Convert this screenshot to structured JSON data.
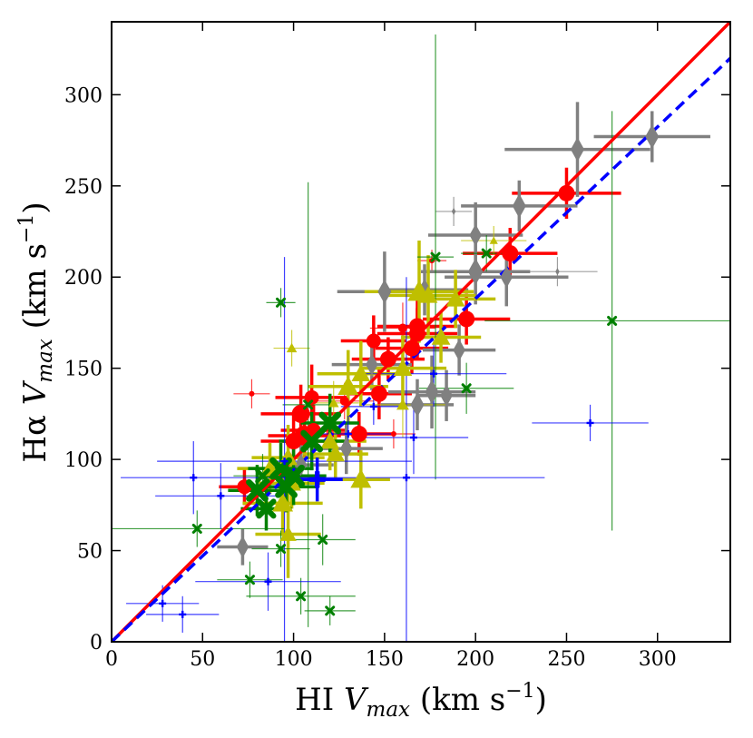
{
  "chart_data": {
    "type": "scatter",
    "title": "",
    "xlabel": {
      "pre": "HI ",
      "var": "V",
      "sub": "max",
      "units": " (km s",
      "exp": "−1",
      "close": ")"
    },
    "ylabel": {
      "pre": "Hα ",
      "var": "V",
      "sub": "max",
      "units": " (km s",
      "exp": "−1",
      "close": ")"
    },
    "xlim": [
      0,
      340
    ],
    "ylim": [
      0,
      340
    ],
    "xticks": [
      0,
      50,
      100,
      150,
      200,
      250,
      300
    ],
    "yticks": [
      0,
      50,
      100,
      150,
      200,
      250,
      300
    ],
    "xtick_labels": [
      "0",
      "50",
      "100",
      "150",
      "200",
      "250",
      "300"
    ],
    "ytick_labels": [
      "0",
      "50",
      "100",
      "150",
      "200",
      "250",
      "300"
    ],
    "grid": false,
    "legend": "none",
    "fit_lines": [
      {
        "style": "solid",
        "color": "#ff0000",
        "points": [
          [
            0,
            0
          ],
          [
            340,
            340
          ]
        ]
      },
      {
        "style": "dashed",
        "color": "#0000ff",
        "points": [
          [
            0,
            0
          ],
          [
            340,
            320
          ]
        ]
      }
    ],
    "series": [
      {
        "marker": "circle",
        "color": "#ff0000",
        "points": [
          {
            "x": 250,
            "y": 246,
            "xerr": 30,
            "yerr": 14,
            "s": 9
          },
          {
            "x": 219,
            "y": 213,
            "xerr": 26,
            "yerr": 14,
            "s": 9
          },
          {
            "x": 195,
            "y": 177,
            "xerr": 24,
            "yerr": 14,
            "s": 9
          },
          {
            "x": 168,
            "y": 173,
            "xerr": 22,
            "yerr": 16,
            "s": 9
          },
          {
            "x": 168,
            "y": 169,
            "xerr": 22,
            "yerr": 14,
            "s": 9
          },
          {
            "x": 165,
            "y": 161,
            "xerr": 20,
            "yerr": 14,
            "s": 9
          },
          {
            "x": 144,
            "y": 165,
            "xerr": 18,
            "yerr": 14,
            "s": 8
          },
          {
            "x": 152,
            "y": 155,
            "xerr": 20,
            "yerr": 12,
            "s": 9
          },
          {
            "x": 147,
            "y": 136,
            "xerr": 18,
            "yerr": 14,
            "s": 9
          },
          {
            "x": 136,
            "y": 114,
            "xerr": 18,
            "yerr": 12,
            "s": 9
          },
          {
            "x": 110,
            "y": 134,
            "xerr": 20,
            "yerr": 18,
            "s": 8
          },
          {
            "x": 104,
            "y": 125,
            "xerr": 22,
            "yerr": 16,
            "s": 10
          },
          {
            "x": 106,
            "y": 113,
            "xerr": 20,
            "yerr": 14,
            "s": 11
          },
          {
            "x": 100,
            "y": 110,
            "xerr": 18,
            "yerr": 14,
            "s": 9
          },
          {
            "x": 111,
            "y": 116,
            "xerr": 18,
            "yerr": 14,
            "s": 8
          },
          {
            "x": 73,
            "y": 85,
            "xerr": 14,
            "yerr": 10,
            "s": 8
          },
          {
            "x": 176,
            "y": 209,
            "xerr": 8,
            "yerr": 6,
            "s": 3
          },
          {
            "x": 77,
            "y": 136,
            "xerr": 10,
            "yerr": 8,
            "s": 3
          },
          {
            "x": 155,
            "y": 114,
            "xerr": 12,
            "yerr": 8,
            "s": 3
          },
          {
            "x": 128,
            "y": 132,
            "xerr": 16,
            "yerr": 10,
            "s": 5
          },
          {
            "x": 160,
            "y": 172,
            "xerr": 18,
            "yerr": 14,
            "s": 5
          }
        ]
      },
      {
        "marker": "diamond",
        "color": "#808080",
        "points": [
          {
            "x": 297,
            "y": 277,
            "xerr": 32,
            "yerr": 14,
            "s": 10
          },
          {
            "x": 256,
            "y": 270,
            "xerr": 40,
            "yerr": 26,
            "s": 10
          },
          {
            "x": 224,
            "y": 239,
            "xerr": 32,
            "yerr": 14,
            "s": 10
          },
          {
            "x": 200,
            "y": 223,
            "xerr": 26,
            "yerr": 18,
            "s": 9
          },
          {
            "x": 200,
            "y": 203,
            "xerr": 30,
            "yerr": 18,
            "s": 11
          },
          {
            "x": 217,
            "y": 200,
            "xerr": 34,
            "yerr": 16,
            "s": 9
          },
          {
            "x": 150,
            "y": 192,
            "xerr": 26,
            "yerr": 22,
            "s": 10
          },
          {
            "x": 172,
            "y": 193,
            "xerr": 24,
            "yerr": 14,
            "s": 9
          },
          {
            "x": 191,
            "y": 160,
            "xerr": 20,
            "yerr": 14,
            "s": 9
          },
          {
            "x": 176,
            "y": 137,
            "xerr": 24,
            "yerr": 20,
            "s": 10
          },
          {
            "x": 168,
            "y": 130,
            "xerr": 20,
            "yerr": 14,
            "s": 10
          },
          {
            "x": 184,
            "y": 135,
            "xerr": 16,
            "yerr": 14,
            "s": 9
          },
          {
            "x": 143,
            "y": 152,
            "xerr": 22,
            "yerr": 14,
            "s": 9
          },
          {
            "x": 129,
            "y": 106,
            "xerr": 20,
            "yerr": 14,
            "s": 9
          },
          {
            "x": 104,
            "y": 97,
            "xerr": 18,
            "yerr": 12,
            "s": 9
          },
          {
            "x": 72,
            "y": 52,
            "xerr": 14,
            "yerr": 10,
            "s": 9
          },
          {
            "x": 188,
            "y": 236,
            "xerr": 10,
            "yerr": 8,
            "s": 3
          },
          {
            "x": 245,
            "y": 203,
            "xerr": 22,
            "yerr": 8,
            "s": 3
          }
        ]
      },
      {
        "marker": "triangle",
        "color": "#bfbf00",
        "points": [
          {
            "x": 169,
            "y": 192,
            "xerr": 30,
            "yerr": 28,
            "s": 11
          },
          {
            "x": 174,
            "y": 190,
            "xerr": 26,
            "yerr": 22,
            "s": 9
          },
          {
            "x": 189,
            "y": 188,
            "xerr": 22,
            "yerr": 16,
            "s": 9
          },
          {
            "x": 181,
            "y": 167,
            "xerr": 22,
            "yerr": 14,
            "s": 9
          },
          {
            "x": 160,
            "y": 150,
            "xerr": 24,
            "yerr": 18,
            "s": 9
          },
          {
            "x": 130,
            "y": 140,
            "xerr": 22,
            "yerr": 20,
            "s": 10
          },
          {
            "x": 137,
            "y": 147,
            "xerr": 24,
            "yerr": 18,
            "s": 9
          },
          {
            "x": 120,
            "y": 110,
            "xerr": 20,
            "yerr": 16,
            "s": 9
          },
          {
            "x": 123,
            "y": 103,
            "xerr": 18,
            "yerr": 14,
            "s": 9
          },
          {
            "x": 137,
            "y": 89,
            "xerr": 16,
            "yerr": 16,
            "s": 10
          },
          {
            "x": 97,
            "y": 101,
            "xerr": 20,
            "yerr": 18,
            "s": 9
          },
          {
            "x": 99,
            "y": 87,
            "xerr": 18,
            "yerr": 14,
            "s": 9
          },
          {
            "x": 94,
            "y": 76,
            "xerr": 22,
            "yerr": 18,
            "s": 10
          },
          {
            "x": 87,
            "y": 95,
            "xerr": 18,
            "yerr": 14,
            "s": 9
          },
          {
            "x": 97,
            "y": 59,
            "xerr": 18,
            "yerr": 24,
            "s": 8
          },
          {
            "x": 99,
            "y": 161,
            "xerr": 10,
            "yerr": 10,
            "s": 5
          },
          {
            "x": 210,
            "y": 220,
            "xerr": 18,
            "yerr": 8,
            "s": 4
          },
          {
            "x": 122,
            "y": 131,
            "xerr": 14,
            "yerr": 12,
            "s": 5
          },
          {
            "x": 160,
            "y": 130,
            "xerr": 24,
            "yerr": 18,
            "s": 6
          }
        ]
      },
      {
        "marker": "x",
        "color": "#008000",
        "points": [
          {
            "x": 120,
            "y": 120,
            "xerr": 16,
            "yerr": 16,
            "s": 9
          },
          {
            "x": 110,
            "y": 110,
            "xerr": 18,
            "yerr": 16,
            "s": 9
          },
          {
            "x": 100,
            "y": 91,
            "xerr": 18,
            "yerr": 16,
            "s": 9
          },
          {
            "x": 93,
            "y": 95,
            "xerr": 18,
            "yerr": 14,
            "s": 9
          },
          {
            "x": 96,
            "y": 85,
            "xerr": 18,
            "yerr": 14,
            "s": 9
          },
          {
            "x": 80,
            "y": 83,
            "xerr": 16,
            "yerr": 14,
            "s": 9
          },
          {
            "x": 85,
            "y": 73,
            "xerr": 14,
            "yerr": 12,
            "s": 8
          },
          {
            "x": 83,
            "y": 91,
            "xerr": 16,
            "yerr": 12,
            "s": 6
          },
          {
            "x": 93,
            "y": 186,
            "xerr": 8,
            "yerr": 8,
            "s": 4
          },
          {
            "x": 275,
            "y": 176,
            "xerr": 70,
            "yerr": 115,
            "s": 4
          },
          {
            "x": 178,
            "y": 211,
            "xerr": 10,
            "yerr": 122,
            "s": 4
          },
          {
            "x": 206,
            "y": 213,
            "xerr": 14,
            "yerr": 10,
            "s": 4
          },
          {
            "x": 195,
            "y": 139,
            "xerr": 26,
            "yerr": 14,
            "s": 4
          },
          {
            "x": 116,
            "y": 56,
            "xerr": 18,
            "yerr": 14,
            "s": 4
          },
          {
            "x": 104,
            "y": 25,
            "xerr": 30,
            "yerr": 10,
            "s": 4
          },
          {
            "x": 120,
            "y": 17,
            "xerr": 14,
            "yerr": 8,
            "s": 4
          },
          {
            "x": 47,
            "y": 62,
            "xerr": 48,
            "yerr": 10,
            "s": 4
          },
          {
            "x": 93,
            "y": 51,
            "xerr": 16,
            "yerr": 10,
            "s": 4
          },
          {
            "x": 76,
            "y": 34,
            "xerr": 18,
            "yerr": 10,
            "s": 4
          },
          {
            "x": 108,
            "y": 130,
            "xerr": 14,
            "yerr": 122,
            "s": 4
          }
        ]
      },
      {
        "marker": "plus",
        "color": "#0000ff",
        "points": [
          {
            "x": 113,
            "y": 89,
            "xerr": 14,
            "yerr": 12,
            "s": 9
          },
          {
            "x": 28,
            "y": 21,
            "xerr": 20,
            "yerr": 10,
            "s": 4
          },
          {
            "x": 39,
            "y": 15,
            "xerr": 20,
            "yerr": 10,
            "s": 4
          },
          {
            "x": 45,
            "y": 90,
            "xerr": 40,
            "yerr": 20,
            "s": 4
          },
          {
            "x": 86,
            "y": 33,
            "xerr": 40,
            "yerr": 16,
            "s": 4
          },
          {
            "x": 162,
            "y": 90,
            "xerr": 76,
            "yerr": 110,
            "s": 4
          },
          {
            "x": 263,
            "y": 120,
            "xerr": 32,
            "yerr": 10,
            "s": 4
          },
          {
            "x": 177,
            "y": 147,
            "xerr": 40,
            "yerr": 18,
            "s": 4
          },
          {
            "x": 95,
            "y": 99,
            "xerr": 70,
            "yerr": 112,
            "s": 4
          },
          {
            "x": 144,
            "y": 129,
            "xerr": 18,
            "yerr": 10,
            "s": 4
          },
          {
            "x": 130,
            "y": 114,
            "xerr": 24,
            "yerr": 10,
            "s": 4
          },
          {
            "x": 60,
            "y": 80,
            "xerr": 36,
            "yerr": 18,
            "s": 4
          },
          {
            "x": 166,
            "y": 112,
            "xerr": 30,
            "yerr": 20,
            "s": 4
          }
        ]
      }
    ]
  }
}
